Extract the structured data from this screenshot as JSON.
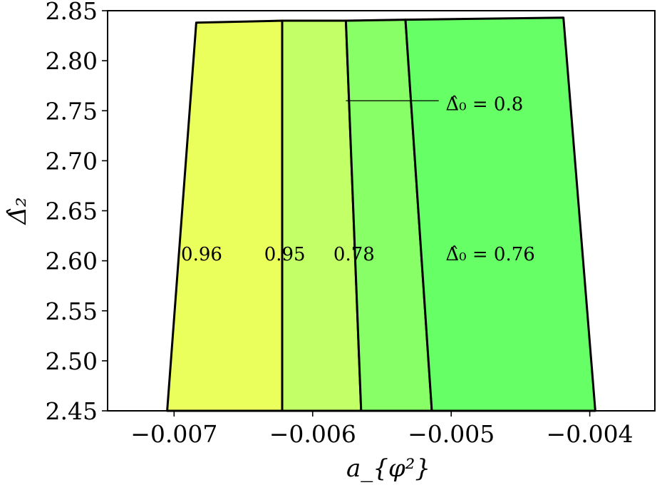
{
  "chart_data": {
    "type": "area",
    "title": "",
    "xlabel": "a_{φ²}",
    "ylabel": "Δ̂₂",
    "xlim": [
      -0.00748,
      -0.00353
    ],
    "ylim": [
      2.45,
      2.85
    ],
    "xticks": [
      -0.007,
      -0.006,
      -0.005,
      -0.004
    ],
    "xtick_labels": [
      "−0.007",
      "−0.006",
      "−0.005",
      "−0.004"
    ],
    "yticks": [
      2.45,
      2.5,
      2.55,
      2.6,
      2.65,
      2.7,
      2.75,
      2.8,
      2.85
    ],
    "ytick_labels": [
      "2.45",
      "2.50",
      "2.55",
      "2.60",
      "2.65",
      "2.70",
      "2.75",
      "2.80",
      "2.85"
    ],
    "grid": false,
    "regions": [
      {
        "label": "0.96",
        "color": "#eaff5c",
        "polygon": [
          [
            -0.00705,
            2.45
          ],
          [
            -0.00684,
            2.838
          ],
          [
            -0.00622,
            2.84
          ],
          [
            -0.00622,
            2.45
          ]
        ],
        "label_at": [
          -0.00695,
          2.607
        ]
      },
      {
        "label": "0.95",
        "color": "#c3ff66",
        "polygon": [
          [
            -0.00622,
            2.45
          ],
          [
            -0.00622,
            2.84
          ],
          [
            -0.00576,
            2.84
          ],
          [
            -0.00565,
            2.45
          ]
        ],
        "label_at": [
          -0.00635,
          2.607
        ]
      },
      {
        "label": "0.78",
        "color": "#88ff66",
        "polygon": [
          [
            -0.00565,
            2.45
          ],
          [
            -0.00576,
            2.84
          ],
          [
            -0.00533,
            2.841
          ],
          [
            -0.00514,
            2.45
          ]
        ],
        "label_at": [
          -0.00585,
          2.607
        ]
      },
      {
        "label": "Δ̂₀ = 0.76",
        "color": "#66ff66",
        "polygon": [
          [
            -0.00514,
            2.45
          ],
          [
            -0.00533,
            2.841
          ],
          [
            -0.00419,
            2.843
          ],
          [
            -0.00396,
            2.45
          ]
        ],
        "label_at": [
          -0.00504,
          2.607
        ]
      }
    ],
    "annotation": {
      "text": "Δ̂₀ = 0.8",
      "line_from": [
        -0.00576,
        2.76
      ],
      "line_to": [
        -0.00509,
        2.76
      ],
      "text_at": [
        -0.00504,
        2.757
      ]
    }
  }
}
